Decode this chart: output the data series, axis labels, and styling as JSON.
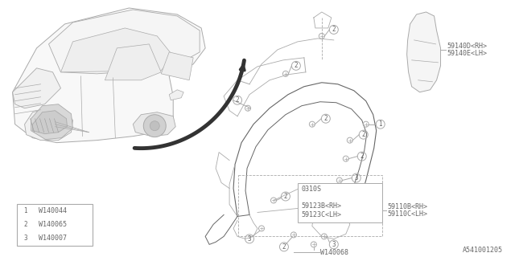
{
  "bg_color": "#ffffff",
  "line_color": "#aaaaaa",
  "dark_line": "#666666",
  "text_color": "#666666",
  "title_bottom_right": "A541001205",
  "legend_items": [
    {
      "num": "1",
      "label": "W140044"
    },
    {
      "num": "2",
      "label": "W140065"
    },
    {
      "num": "3",
      "label": "W140007"
    }
  ],
  "part_labels_right": [
    "59140D<RH>",
    "59140E<LH>"
  ],
  "part_labels_box": [
    "0310S",
    "59123B<RH>",
    "59123C<LH>"
  ],
  "part_labels_far_right": [
    "59110B<RH>",
    "59110C<LH>"
  ],
  "bottom_label": "W140068"
}
